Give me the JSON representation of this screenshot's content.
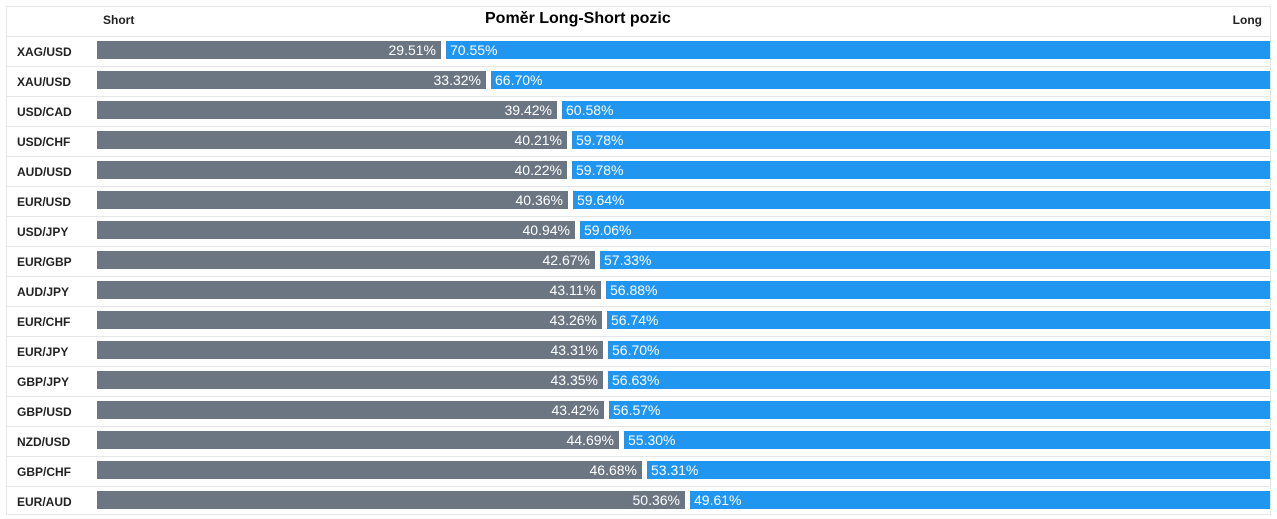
{
  "chart_data": {
    "type": "bar",
    "title": "Poměr Long-Short pozic",
    "left_label": "Short",
    "right_label": "Long",
    "colors": {
      "short": "#6c7683",
      "long": "#2196f0"
    },
    "categories": [
      "XAG/USD",
      "XAU/USD",
      "USD/CAD",
      "USD/CHF",
      "AUD/USD",
      "EUR/USD",
      "USD/JPY",
      "EUR/GBP",
      "AUD/JPY",
      "EUR/CHF",
      "EUR/JPY",
      "GBP/JPY",
      "GBP/USD",
      "NZD/USD",
      "GBP/CHF",
      "EUR/AUD"
    ],
    "series": [
      {
        "name": "Short",
        "values": [
          29.51,
          33.32,
          39.42,
          40.21,
          40.22,
          40.36,
          40.94,
          42.67,
          43.11,
          43.26,
          43.31,
          43.35,
          43.42,
          44.69,
          46.68,
          50.36
        ]
      },
      {
        "name": "Long",
        "values": [
          70.55,
          66.7,
          60.58,
          59.78,
          59.78,
          59.64,
          59.06,
          57.33,
          56.88,
          56.74,
          56.7,
          56.63,
          56.57,
          55.3,
          53.31,
          49.61
        ]
      }
    ],
    "short_labels": [
      "29.51%",
      "33.32%",
      "39.42%",
      "40.21%",
      "40.22%",
      "40.36%",
      "40.94%",
      "42.67%",
      "43.11%",
      "43.26%",
      "43.31%",
      "43.35%",
      "43.42%",
      "44.69%",
      "46.68%",
      "50.36%"
    ],
    "long_labels": [
      "70.55%",
      "66.70%",
      "60.58%",
      "59.78%",
      "59.78%",
      "59.64%",
      "59.06%",
      "57.33%",
      "56.88%",
      "56.74%",
      "56.70%",
      "56.63%",
      "56.57%",
      "55.30%",
      "53.31%",
      "49.61%"
    ]
  }
}
